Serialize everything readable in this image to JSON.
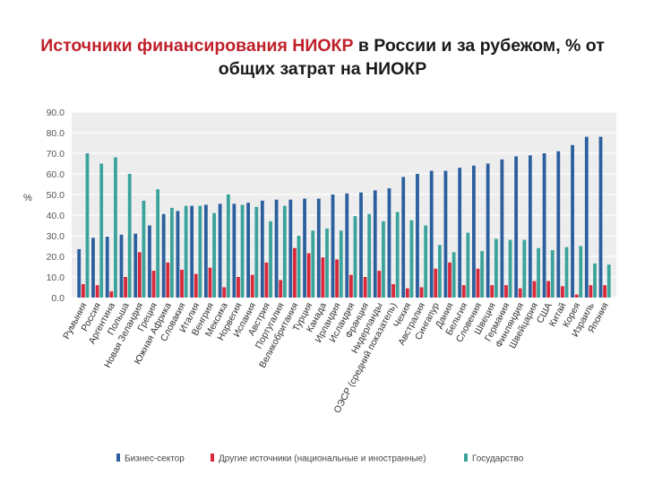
{
  "title": {
    "accent": "Источники финансирования НИОКР",
    "rest": " в России и за рубежом, % от общих затрат на НИОКР"
  },
  "colors": {
    "business": "#2c5f9e",
    "other": "#d8283a",
    "state": "#3aa39b",
    "plot_bg": "#ededed",
    "grid": "#ffffff"
  },
  "chart_data": {
    "type": "bar",
    "ylabel": "%",
    "ylim": [
      0,
      90
    ],
    "yticks": [
      "0.0",
      "10.0",
      "20.0",
      "30.0",
      "40.0",
      "50.0",
      "60.0",
      "70.0",
      "80.0",
      "90.0"
    ],
    "grid": true,
    "legend_position": "bottom",
    "categories": [
      "Румыния",
      "Россия",
      "Аргентина",
      "Польша",
      "Новая Зеландия",
      "Греция",
      "Южная Африка",
      "Словакия",
      "Италия",
      "Венгрия",
      "Мексика",
      "Норвегия",
      "Испания",
      "Австрия",
      "Португалия",
      "Великобритания",
      "Турция",
      "Канада",
      "Ирландия",
      "Исландия",
      "Франция",
      "Нидерланды",
      "ОЭСР (средний показатель)",
      "Чехия",
      "Австралия",
      "Сингапур",
      "Дания",
      "Бельгия",
      "Словения",
      "Швеция",
      "Германия",
      "Финляндия",
      "Швейцария",
      "США",
      "Китай",
      "Корея",
      "Израиль",
      "Япония"
    ],
    "series": [
      {
        "name": "Бизнес-сектор",
        "values": [
          23.5,
          29,
          29.5,
          30.5,
          31,
          35,
          40.5,
          42,
          44.5,
          45,
          45.5,
          45.5,
          46,
          47,
          47.5,
          47.5,
          48,
          48,
          50,
          50.5,
          51,
          52,
          53,
          58.5,
          60,
          61.5,
          61.5,
          63,
          64,
          65,
          67,
          68.5,
          69,
          70,
          71,
          74,
          78,
          78
        ]
      },
      {
        "name": "Другие источники (национальные и иностранные)",
        "values": [
          6.5,
          6,
          3,
          10,
          22,
          13,
          17,
          13.5,
          11.5,
          14.5,
          5,
          10,
          11,
          17,
          8.5,
          24,
          21.5,
          19.5,
          18.5,
          11,
          10,
          13,
          6.5,
          4.5,
          5,
          14,
          17,
          6,
          14,
          6,
          6,
          4.5,
          8,
          8,
          5.5,
          1.5,
          6,
          6
        ]
      },
      {
        "name": "Государство",
        "values": [
          70,
          65,
          68,
          60,
          47,
          52.5,
          43.5,
          44.5,
          44.5,
          41,
          50,
          45,
          44,
          37,
          44.5,
          30,
          32.5,
          33.5,
          32.5,
          39.5,
          40.5,
          37,
          41.5,
          37.5,
          35,
          25.5,
          22,
          31.5,
          22.5,
          28.5,
          28,
          28,
          24,
          23,
          24.5,
          25,
          16.5,
          16
        ]
      }
    ]
  }
}
